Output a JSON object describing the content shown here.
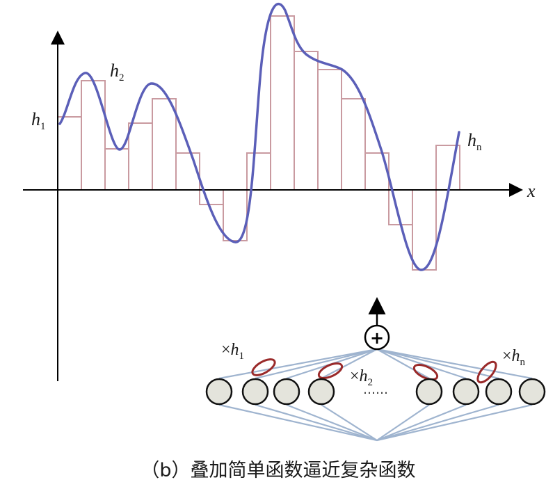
{
  "figure": {
    "axis_label_x": "x",
    "caption": "（b）叠加简单函数逼近复杂函数",
    "ellipsis": "……",
    "labels": {
      "h1": {
        "var": "h",
        "sub": "1"
      },
      "h2": {
        "var": "h",
        "sub": "2"
      },
      "hn": {
        "var": "h",
        "sub": "n"
      }
    },
    "network_labels": {
      "w1": {
        "prefix": "×",
        "var": "h",
        "sub": "1"
      },
      "w2": {
        "prefix": "×",
        "var": "h",
        "sub": "2"
      },
      "wn": {
        "prefix": "×",
        "var": "h",
        "sub": "n"
      }
    },
    "sum_symbol": "+"
  },
  "colors": {
    "curve": "#5b5fb8",
    "bars": "#c99aa0",
    "axis": "#000000",
    "ellipse": "#9a2a2a",
    "neuron_fill": "#e4e4dc",
    "connection": "#9fb4cf"
  }
}
